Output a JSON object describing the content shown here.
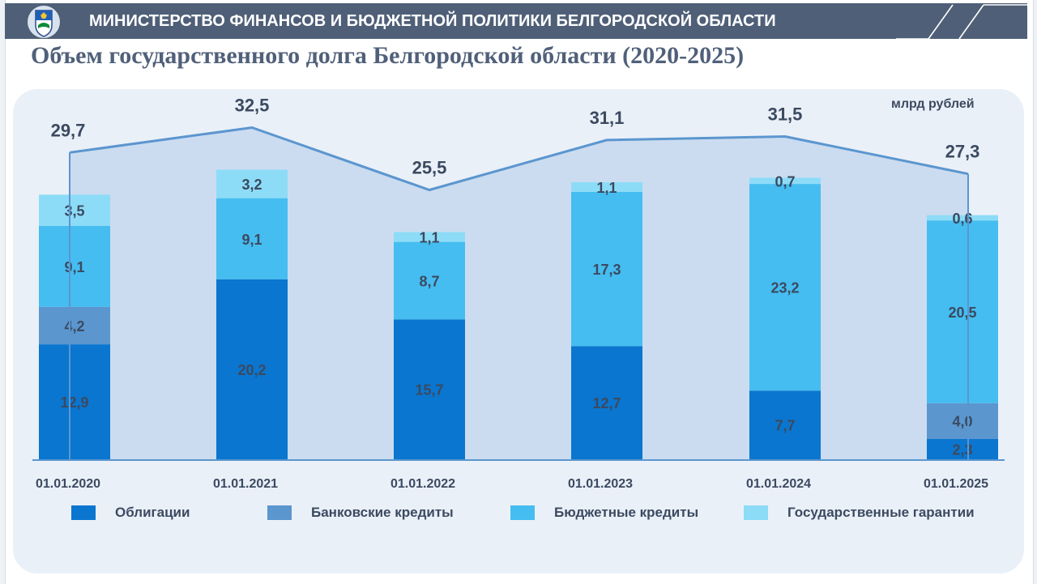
{
  "header": {
    "title": "МИНИСТЕРСТВО ФИНАНСОВ И БЮДЖЕТНОЙ ПОЛИТИКИ БЕЛГОРОДСКОЙ ОБЛАСТИ"
  },
  "page": {
    "title": "Объем государственного долга Белгородской области (2020-2025)"
  },
  "colors": {
    "header_bg": "#4f5f77",
    "panel_bg": "#eaf0f8",
    "area_fill": "#c6d8ef",
    "line": "#5b96cf",
    "label_text": "#3b4a60"
  },
  "chart_data": {
    "type": "bar",
    "stacked": true,
    "unit": "млрд рублей",
    "categories": [
      "01.01.2020",
      "01.01.2021",
      "01.01.2022",
      "01.01.2023",
      "01.01.2024",
      "01.01.2025"
    ],
    "totals": [
      "29,7",
      "32,5",
      "25,5",
      "31,1",
      "31,5",
      "27,3"
    ],
    "total_values": [
      29.7,
      32.5,
      25.5,
      31.1,
      31.5,
      27.3
    ],
    "series": [
      {
        "name": "Облигации",
        "color": "#0a76cf",
        "values": [
          12.9,
          20.2,
          15.7,
          12.7,
          7.7,
          2.3
        ],
        "labels": [
          "12,9",
          "20,2",
          "15,7",
          "12,7",
          "7,7",
          "2,3"
        ]
      },
      {
        "name": "Банковские кредиты",
        "color": "#5b96cf",
        "values": [
          4.2,
          0,
          0,
          0,
          0,
          4.0
        ],
        "labels": [
          "4,2",
          "",
          "",
          "",
          "",
          "4,0"
        ]
      },
      {
        "name": "Бюджетные кредиты",
        "color": "#45bdf0",
        "values": [
          9.1,
          9.1,
          8.7,
          17.3,
          23.2,
          20.5
        ],
        "labels": [
          "9,1",
          "9,1",
          "8,7",
          "17,3",
          "23,2",
          "20,5"
        ]
      },
      {
        "name": "Государственные гарантии",
        "color": "#8ddcf7",
        "values": [
          3.5,
          3.2,
          1.1,
          1.1,
          0.7,
          0.6
        ],
        "labels": [
          "3,5",
          "3,2",
          "1,1",
          "1,1",
          "0,7",
          "0,6"
        ]
      }
    ],
    "ylim": [
      0,
      36
    ],
    "grid": false,
    "legend_position": "bottom"
  }
}
